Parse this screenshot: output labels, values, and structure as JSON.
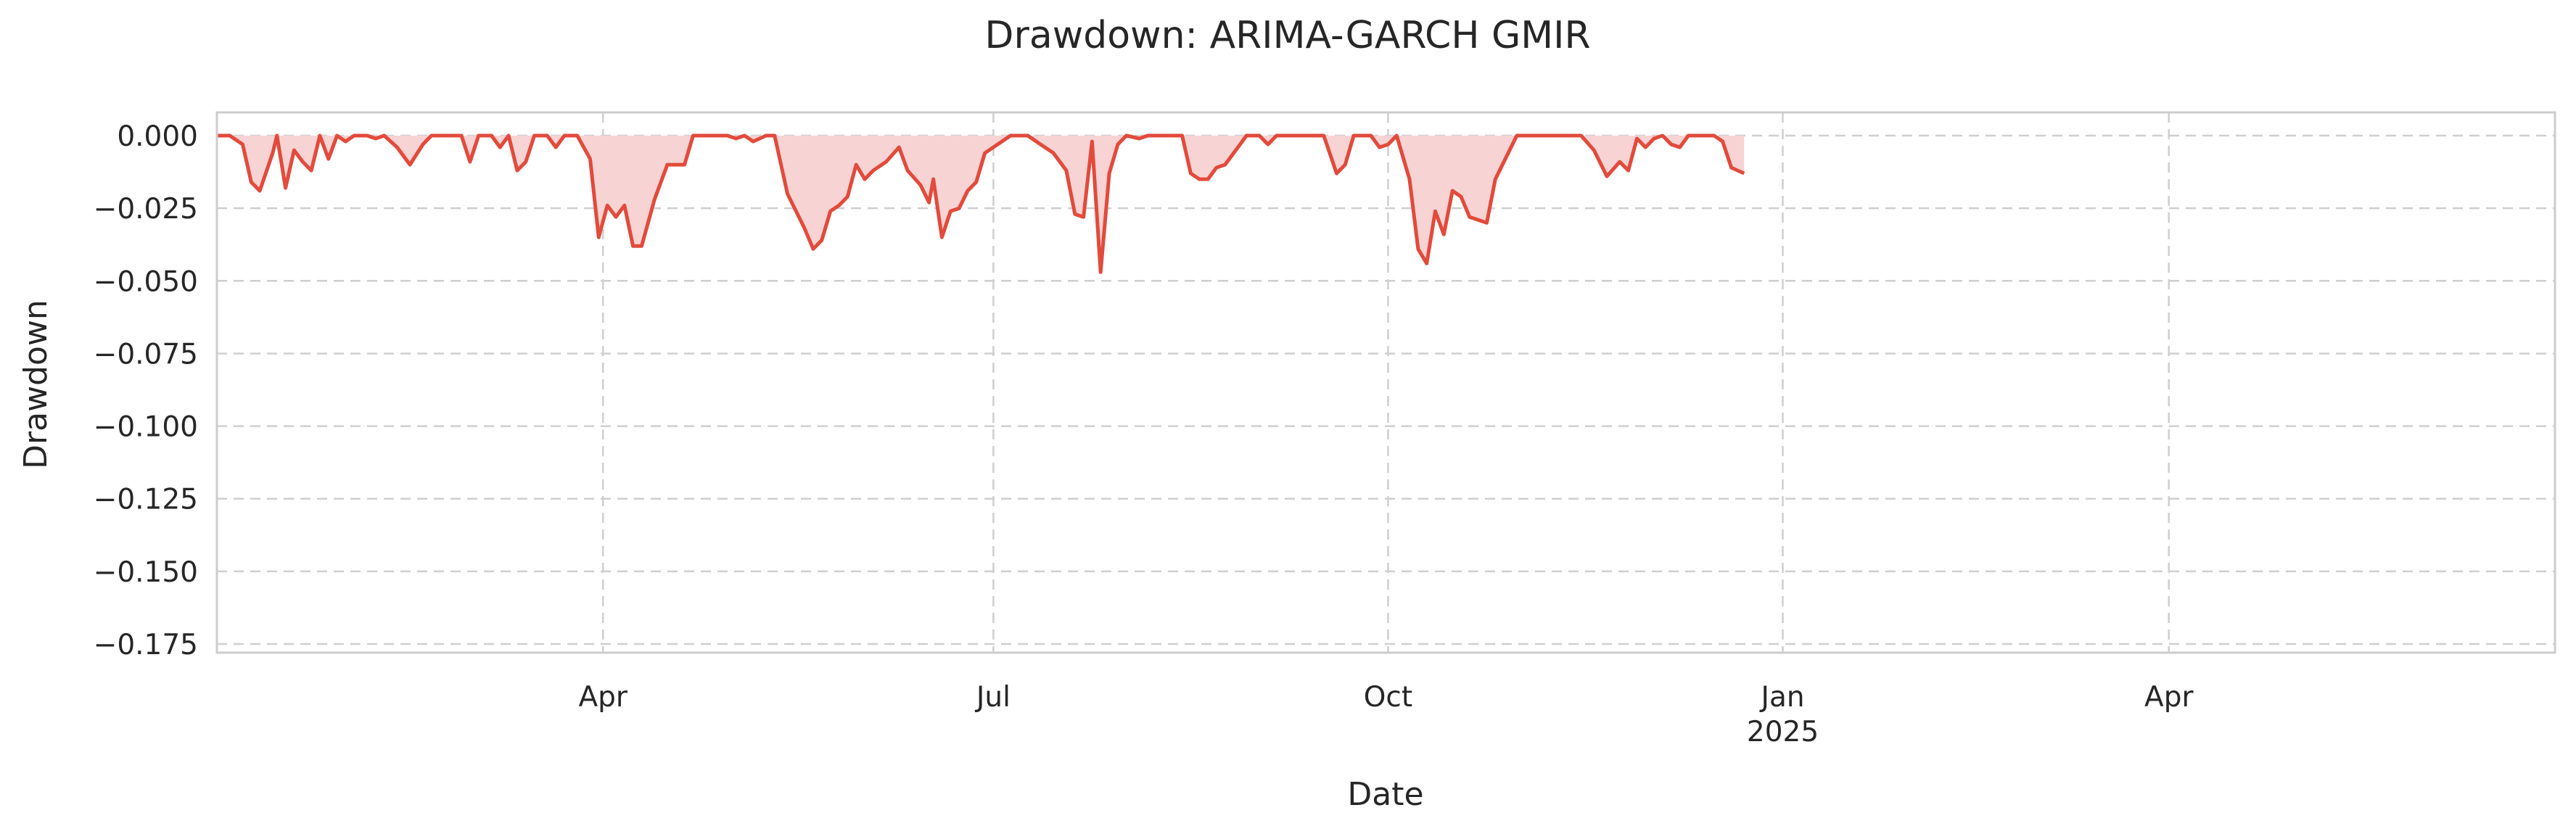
{
  "chart_data": {
    "type": "area",
    "title": "Drawdown: ARIMA-GARCH GMIR",
    "xlabel": "Date",
    "ylabel": "Drawdown",
    "xlim": [
      "2024-01-02",
      "2025-06-30"
    ],
    "ylim": [
      -0.178,
      0.008
    ],
    "grid": true,
    "legend": "none",
    "colors": {
      "line": "#e24a3b",
      "fill": "#f8d3d3",
      "grid": "#cfcfcf",
      "frame": "#cccccc",
      "text": "#262626"
    },
    "x_ticks": [
      {
        "date": "2024-04-01",
        "label": "Apr",
        "sublabel": ""
      },
      {
        "date": "2024-07-01",
        "label": "Jul",
        "sublabel": ""
      },
      {
        "date": "2024-10-01",
        "label": "Oct",
        "sublabel": ""
      },
      {
        "date": "2025-01-01",
        "label": "Jan",
        "sublabel": "2025"
      },
      {
        "date": "2025-04-01",
        "label": "Apr",
        "sublabel": ""
      }
    ],
    "y_ticks": [
      {
        "value": 0.0,
        "label": "0.000"
      },
      {
        "value": -0.025,
        "label": "−0.025"
      },
      {
        "value": -0.05,
        "label": "−0.050"
      },
      {
        "value": -0.075,
        "label": "−0.075"
      },
      {
        "value": -0.1,
        "label": "−0.100"
      },
      {
        "value": -0.125,
        "label": "−0.125"
      },
      {
        "value": -0.15,
        "label": "−0.150"
      },
      {
        "value": -0.175,
        "label": "−0.175"
      }
    ],
    "series": [
      {
        "points": [
          [
            "2024-01-02",
            0.0
          ],
          [
            "2024-01-05",
            0.0
          ],
          [
            "2024-01-08",
            -0.003
          ],
          [
            "2024-01-10",
            -0.016
          ],
          [
            "2024-01-12",
            -0.019
          ],
          [
            "2024-01-15",
            -0.006
          ],
          [
            "2024-01-16",
            0.0
          ],
          [
            "2024-01-18",
            -0.018
          ],
          [
            "2024-01-20",
            -0.005
          ],
          [
            "2024-01-22",
            -0.009
          ],
          [
            "2024-01-24",
            -0.012
          ],
          [
            "2024-01-26",
            0.0
          ],
          [
            "2024-01-28",
            -0.008
          ],
          [
            "2024-01-30",
            0.0
          ],
          [
            "2024-02-01",
            -0.002
          ],
          [
            "2024-02-03",
            0.0
          ],
          [
            "2024-02-06",
            0.0
          ],
          [
            "2024-02-08",
            -0.001
          ],
          [
            "2024-02-10",
            0.0
          ],
          [
            "2024-02-13",
            -0.004
          ],
          [
            "2024-02-16",
            -0.01
          ],
          [
            "2024-02-19",
            -0.003
          ],
          [
            "2024-02-21",
            0.0
          ],
          [
            "2024-02-24",
            0.0
          ],
          [
            "2024-02-28",
            0.0
          ],
          [
            "2024-03-01",
            -0.009
          ],
          [
            "2024-03-03",
            0.0
          ],
          [
            "2024-03-06",
            0.0
          ],
          [
            "2024-03-08",
            -0.004
          ],
          [
            "2024-03-10",
            0.0
          ],
          [
            "2024-03-12",
            -0.012
          ],
          [
            "2024-03-14",
            -0.009
          ],
          [
            "2024-03-16",
            0.0
          ],
          [
            "2024-03-19",
            0.0
          ],
          [
            "2024-03-21",
            -0.004
          ],
          [
            "2024-03-23",
            0.0
          ],
          [
            "2024-03-26",
            0.0
          ],
          [
            "2024-03-29",
            -0.008
          ],
          [
            "2024-03-31",
            -0.035
          ],
          [
            "2024-04-02",
            -0.024
          ],
          [
            "2024-04-04",
            -0.028
          ],
          [
            "2024-04-06",
            -0.024
          ],
          [
            "2024-04-08",
            -0.038
          ],
          [
            "2024-04-10",
            -0.038
          ],
          [
            "2024-04-13",
            -0.022
          ],
          [
            "2024-04-16",
            -0.01
          ],
          [
            "2024-04-20",
            -0.01
          ],
          [
            "2024-04-22",
            0.0
          ],
          [
            "2024-04-26",
            0.0
          ],
          [
            "2024-04-30",
            0.0
          ],
          [
            "2024-05-02",
            -0.001
          ],
          [
            "2024-05-04",
            0.0
          ],
          [
            "2024-05-06",
            -0.002
          ],
          [
            "2024-05-09",
            0.0
          ],
          [
            "2024-05-11",
            0.0
          ],
          [
            "2024-05-14",
            -0.02
          ],
          [
            "2024-05-18",
            -0.032
          ],
          [
            "2024-05-20",
            -0.039
          ],
          [
            "2024-05-22",
            -0.036
          ],
          [
            "2024-05-24",
            -0.026
          ],
          [
            "2024-05-26",
            -0.024
          ],
          [
            "2024-05-28",
            -0.021
          ],
          [
            "2024-05-30",
            -0.01
          ],
          [
            "2024-06-01",
            -0.015
          ],
          [
            "2024-06-03",
            -0.012
          ],
          [
            "2024-06-06",
            -0.009
          ],
          [
            "2024-06-09",
            -0.004
          ],
          [
            "2024-06-11",
            -0.012
          ],
          [
            "2024-06-14",
            -0.017
          ],
          [
            "2024-06-16",
            -0.023
          ],
          [
            "2024-06-17",
            -0.015
          ],
          [
            "2024-06-19",
            -0.035
          ],
          [
            "2024-06-21",
            -0.026
          ],
          [
            "2024-06-23",
            -0.025
          ],
          [
            "2024-06-25",
            -0.019
          ],
          [
            "2024-06-27",
            -0.016
          ],
          [
            "2024-06-29",
            -0.006
          ],
          [
            "2024-07-02",
            -0.003
          ],
          [
            "2024-07-05",
            0.0
          ],
          [
            "2024-07-09",
            0.0
          ],
          [
            "2024-07-12",
            -0.003
          ],
          [
            "2024-07-15",
            -0.006
          ],
          [
            "2024-07-18",
            -0.012
          ],
          [
            "2024-07-20",
            -0.027
          ],
          [
            "2024-07-22",
            -0.028
          ],
          [
            "2024-07-24",
            -0.002
          ],
          [
            "2024-07-26",
            -0.047
          ],
          [
            "2024-07-28",
            -0.013
          ],
          [
            "2024-07-30",
            -0.003
          ],
          [
            "2024-08-01",
            0.0
          ],
          [
            "2024-08-04",
            -0.001
          ],
          [
            "2024-08-06",
            0.0
          ],
          [
            "2024-08-10",
            0.0
          ],
          [
            "2024-08-14",
            0.0
          ],
          [
            "2024-08-16",
            -0.013
          ],
          [
            "2024-08-18",
            -0.015
          ],
          [
            "2024-08-20",
            -0.015
          ],
          [
            "2024-08-22",
            -0.011
          ],
          [
            "2024-08-24",
            -0.01
          ],
          [
            "2024-08-27",
            -0.004
          ],
          [
            "2024-08-29",
            0.0
          ],
          [
            "2024-09-01",
            0.0
          ],
          [
            "2024-09-03",
            -0.003
          ],
          [
            "2024-09-05",
            0.0
          ],
          [
            "2024-09-08",
            0.0
          ],
          [
            "2024-09-12",
            0.0
          ],
          [
            "2024-09-16",
            0.0
          ],
          [
            "2024-09-19",
            -0.013
          ],
          [
            "2024-09-21",
            -0.01
          ],
          [
            "2024-09-23",
            0.0
          ],
          [
            "2024-09-25",
            0.0
          ],
          [
            "2024-09-27",
            0.0
          ],
          [
            "2024-09-29",
            -0.004
          ],
          [
            "2024-10-01",
            -0.003
          ],
          [
            "2024-10-03",
            0.0
          ],
          [
            "2024-10-06",
            -0.015
          ],
          [
            "2024-10-08",
            -0.039
          ],
          [
            "2024-10-10",
            -0.044
          ],
          [
            "2024-10-12",
            -0.026
          ],
          [
            "2024-10-14",
            -0.034
          ],
          [
            "2024-10-16",
            -0.019
          ],
          [
            "2024-10-18",
            -0.021
          ],
          [
            "2024-10-20",
            -0.028
          ],
          [
            "2024-10-22",
            -0.029
          ],
          [
            "2024-10-24",
            -0.03
          ],
          [
            "2024-10-26",
            -0.015
          ],
          [
            "2024-10-28",
            -0.009
          ],
          [
            "2024-10-31",
            0.0
          ],
          [
            "2024-11-05",
            0.0
          ],
          [
            "2024-11-10",
            0.0
          ],
          [
            "2024-11-15",
            0.0
          ],
          [
            "2024-11-18",
            -0.005
          ],
          [
            "2024-11-21",
            -0.014
          ],
          [
            "2024-11-24",
            -0.009
          ],
          [
            "2024-11-26",
            -0.012
          ],
          [
            "2024-11-28",
            -0.001
          ],
          [
            "2024-11-30",
            -0.004
          ],
          [
            "2024-12-02",
            -0.001
          ],
          [
            "2024-12-04",
            0.0
          ],
          [
            "2024-12-06",
            -0.003
          ],
          [
            "2024-12-08",
            -0.004
          ],
          [
            "2024-12-10",
            0.0
          ],
          [
            "2024-12-13",
            0.0
          ],
          [
            "2024-12-16",
            0.0
          ],
          [
            "2024-12-18",
            -0.002
          ],
          [
            "2024-12-20",
            -0.011
          ],
          [
            "2024-12-23",
            -0.013
          ]
        ]
      }
    ]
  }
}
